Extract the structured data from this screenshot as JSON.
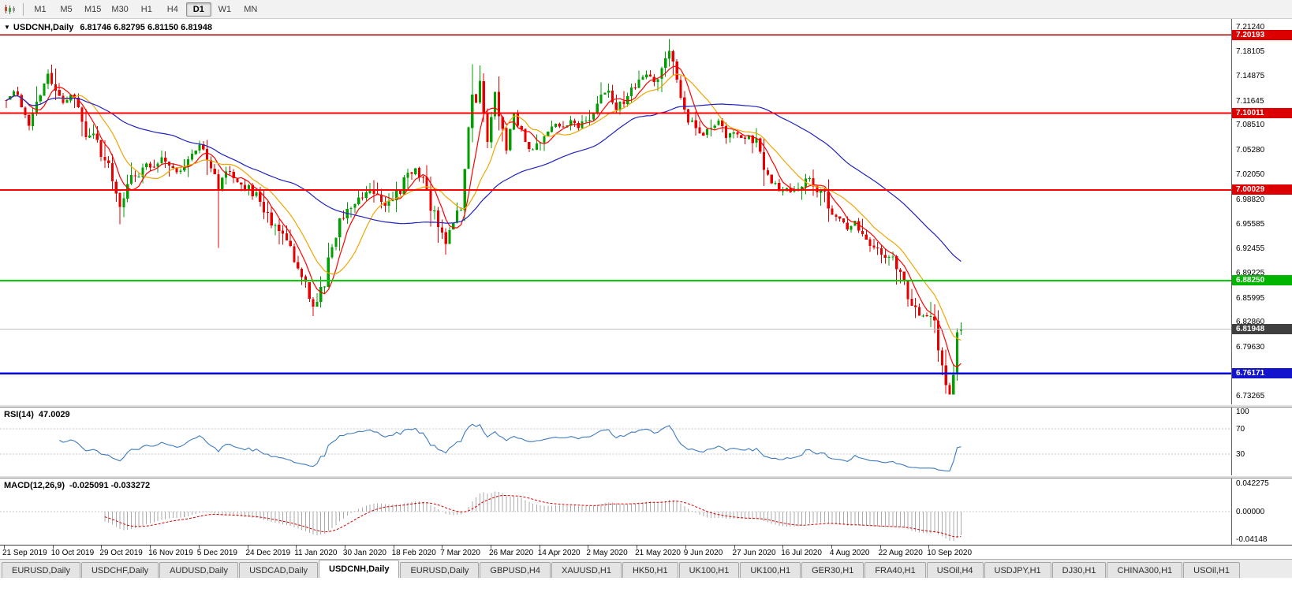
{
  "toolbar": {
    "timeframes": [
      "M1",
      "M5",
      "M15",
      "M30",
      "H1",
      "H4",
      "D1",
      "W1",
      "MN"
    ],
    "active_timeframe": "D1"
  },
  "chart": {
    "collapse_icon": "▼",
    "symbol_label": "USDCNH,Daily",
    "ohlc_text": "6.81746 6.82795 6.81150 6.81948"
  },
  "price_axis": {
    "labels": [
      "7.21240",
      "7.18105",
      "7.14875",
      "7.11645",
      "7.08510",
      "7.05280",
      "7.02050",
      "6.98820",
      "6.95585",
      "6.92455",
      "6.89225",
      "6.85995",
      "6.82860",
      "6.79630",
      "6.76400",
      "6.73265"
    ]
  },
  "levels": [
    {
      "label": "7.20193",
      "price": 7.20193,
      "line_color": "#b20000",
      "badge_color": "#dd0000",
      "width": 1.4,
      "current": false
    },
    {
      "label": "7.10011",
      "price": 7.10011,
      "line_color": "#ff0000",
      "badge_color": "#dd0000",
      "width": 2,
      "current": false
    },
    {
      "label": "7.00029",
      "price": 7.00029,
      "line_color": "#ff0000",
      "badge_color": "#dd0000",
      "width": 2,
      "current": false
    },
    {
      "label": "6.88250",
      "price": 6.8825,
      "line_color": "#00cf00",
      "badge_color": "#00b400",
      "width": 2,
      "current": false
    },
    {
      "label": "6.81948",
      "price": 6.81948,
      "line_color": "#bdbdbd",
      "badge_color": "#3f3f3f",
      "width": 1,
      "current": true
    },
    {
      "label": "6.76171",
      "price": 6.76171,
      "line_color": "#0000e6",
      "badge_color": "#1414cd",
      "width": 2.4,
      "current": false
    }
  ],
  "indicators": {
    "rsi": {
      "name": "RSI(14)",
      "value": "47.0029",
      "axis_labels": [
        "100",
        "70",
        "30"
      ],
      "axis_values": [
        100,
        70,
        30
      ],
      "levels": [
        70,
        30
      ],
      "line_color": "#3e7bbf"
    },
    "macd": {
      "name": "MACD(12,26,9)",
      "value_text": "-0.025091 -0.033272",
      "axis_labels": [
        "0.042275",
        "0.00000",
        "-0.04148"
      ],
      "hist_color": "#ababab",
      "signal_color": "#d40000"
    }
  },
  "date_axis": {
    "labels": [
      "21 Sep 2019",
      "10 Oct 2019",
      "29 Oct 2019",
      "16 Nov 2019",
      "5 Dec 2019",
      "24 Dec 2019",
      "11 Jan 2020",
      "30 Jan 2020",
      "18 Feb 2020",
      "7 Mar 2020",
      "26 Mar 2020",
      "14 Apr 2020",
      "2 May 2020",
      "21 May 2020",
      "9 Jun 2020",
      "27 Jun 2020",
      "16 Jul 2020",
      "4 Aug 2020",
      "22 Aug 2020",
      "10 Sep 2020"
    ]
  },
  "tabs": {
    "active_index": 4,
    "items": [
      "EURUSD,Daily",
      "USDCHF,Daily",
      "AUDUSD,Daily",
      "USDCAD,Daily",
      "USDCNH,Daily",
      "EURUSD,Daily",
      "GBPUSD,H4",
      "XAUUSD,H1",
      "HK50,H1",
      "UK100,H1",
      "UK100,H1",
      "GER30,H1",
      "FRA40,H1",
      "USOil,H4",
      "USDJPY,H1",
      "DJ30,H1",
      "CHINA300,H1",
      "USOil,H1"
    ]
  },
  "chart_data": {
    "type": "candlestick",
    "symbol": "USDCNH",
    "timeframe": "Daily",
    "y_range": [
      6.73265,
      7.2124
    ],
    "x_range": [
      "21 Sep 2019",
      "22 Sep 2020"
    ],
    "last_candle": {
      "open": 6.81746,
      "high": 6.82795,
      "low": 6.8115,
      "close": 6.81948
    },
    "second_last_candle": {
      "open": 6.7605,
      "high": 6.8205,
      "low": 6.752,
      "close": 6.815
    },
    "horizontal_levels": [
      7.20193,
      7.10011,
      7.00029,
      6.8825,
      6.76171
    ],
    "moving_averages": [
      {
        "name": "fast-ma",
        "period": 6,
        "color": "#ff0000"
      },
      {
        "name": "mid-ma",
        "period": 13,
        "color": "#efa600"
      },
      {
        "name": "slow-ma",
        "period": 45,
        "color": "#2020c0"
      }
    ],
    "candle_count": 253,
    "up_color": "#00a000",
    "down_color": "#e60000",
    "price_path": [
      [
        0,
        7.118
      ],
      [
        2,
        7.128
      ],
      [
        4,
        7.112
      ],
      [
        6,
        7.086
      ],
      [
        8,
        7.116
      ],
      [
        10,
        7.142
      ],
      [
        11,
        7.15
      ],
      [
        13,
        7.127
      ],
      [
        15,
        7.112
      ],
      [
        17,
        7.127
      ],
      [
        19,
        7.1
      ],
      [
        21,
        7.068
      ],
      [
        23,
        7.073
      ],
      [
        25,
        7.052
      ],
      [
        27,
        7.032
      ],
      [
        29,
        6.997
      ],
      [
        30,
        6.979
      ],
      [
        31,
        6.993
      ],
      [
        33,
        7.017
      ],
      [
        35,
        7.022
      ],
      [
        37,
        7.036
      ],
      [
        39,
        7.028
      ],
      [
        41,
        7.043
      ],
      [
        43,
        7.03
      ],
      [
        45,
        7.022
      ],
      [
        47,
        7.033
      ],
      [
        49,
        7.046
      ],
      [
        51,
        7.057
      ],
      [
        53,
        7.04
      ],
      [
        55,
        7.022
      ],
      [
        56,
        7.003
      ],
      [
        58,
        7.028
      ],
      [
        60,
        7.018
      ],
      [
        62,
        7.008
      ],
      [
        64,
        7.002
      ],
      [
        66,
        6.991
      ],
      [
        68,
        6.972
      ],
      [
        70,
        6.961
      ],
      [
        72,
        6.942
      ],
      [
        74,
        6.93
      ],
      [
        76,
        6.911
      ],
      [
        78,
        6.886
      ],
      [
        80,
        6.859
      ],
      [
        81,
        6.846
      ],
      [
        82,
        6.853
      ],
      [
        84,
        6.883
      ],
      [
        86,
        6.932
      ],
      [
        88,
        6.961
      ],
      [
        90,
        6.971
      ],
      [
        92,
        6.982
      ],
      [
        94,
        6.992
      ],
      [
        96,
        7.001
      ],
      [
        98,
        6.988
      ],
      [
        100,
        6.978
      ],
      [
        102,
        6.992
      ],
      [
        104,
        6.999
      ],
      [
        106,
        7.021
      ],
      [
        108,
        7.027
      ],
      [
        110,
        7.011
      ],
      [
        112,
        6.981
      ],
      [
        114,
        6.952
      ],
      [
        116,
        6.931
      ],
      [
        118,
        6.953
      ],
      [
        120,
        6.983
      ],
      [
        121,
        7.021
      ],
      [
        122,
        7.081
      ],
      [
        123,
        7.131
      ],
      [
        124,
        7.111
      ],
      [
        125,
        7.147
      ],
      [
        126,
        7.097
      ],
      [
        127,
        7.062
      ],
      [
        128,
        7.094
      ],
      [
        129,
        7.127
      ],
      [
        130,
        7.097
      ],
      [
        131,
        7.071
      ],
      [
        132,
        7.052
      ],
      [
        133,
        7.081
      ],
      [
        134,
        7.101
      ],
      [
        135,
        7.081
      ],
      [
        137,
        7.061
      ],
      [
        139,
        7.051
      ],
      [
        141,
        7.067
      ],
      [
        143,
        7.077
      ],
      [
        145,
        7.087
      ],
      [
        147,
        7.081
      ],
      [
        149,
        7.091
      ],
      [
        151,
        7.081
      ],
      [
        153,
        7.091
      ],
      [
        155,
        7.101
      ],
      [
        157,
        7.121
      ],
      [
        159,
        7.127
      ],
      [
        161,
        7.107
      ],
      [
        163,
        7.117
      ],
      [
        165,
        7.131
      ],
      [
        167,
        7.141
      ],
      [
        169,
        7.151
      ],
      [
        171,
        7.141
      ],
      [
        173,
        7.157
      ],
      [
        175,
        7.177
      ],
      [
        176,
        7.167
      ],
      [
        178,
        7.121
      ],
      [
        180,
        7.091
      ],
      [
        182,
        7.081
      ],
      [
        184,
        7.071
      ],
      [
        186,
        7.081
      ],
      [
        188,
        7.091
      ],
      [
        190,
        7.071
      ],
      [
        192,
        7.077
      ],
      [
        194,
        7.067
      ],
      [
        196,
        7.071
      ],
      [
        198,
        7.061
      ],
      [
        200,
        7.031
      ],
      [
        202,
        7.011
      ],
      [
        204,
        6.997
      ],
      [
        206,
        7.001
      ],
      [
        208,
        6.997
      ],
      [
        210,
        7.007
      ],
      [
        212,
        7.017
      ],
      [
        214,
        7.001
      ],
      [
        216,
        6.991
      ],
      [
        218,
        6.971
      ],
      [
        220,
        6.961
      ],
      [
        222,
        6.951
      ],
      [
        224,
        6.957
      ],
      [
        226,
        6.941
      ],
      [
        228,
        6.931
      ],
      [
        230,
        6.921
      ],
      [
        232,
        6.911
      ],
      [
        234,
        6.917
      ],
      [
        236,
        6.891
      ],
      [
        238,
        6.861
      ],
      [
        240,
        6.845
      ],
      [
        242,
        6.837
      ],
      [
        244,
        6.841
      ],
      [
        245,
        6.831
      ],
      [
        246,
        6.801
      ],
      [
        247,
        6.771
      ],
      [
        248,
        6.747
      ],
      [
        249,
        6.741
      ],
      [
        250,
        6.761
      ],
      [
        251,
        6.8145
      ],
      [
        252,
        6.81948
      ]
    ],
    "wick_features": [
      [
        30,
        "l",
        6.9558
      ],
      [
        56,
        "l",
        6.925
      ],
      [
        81,
        "l",
        6.836
      ],
      [
        116,
        "l",
        6.916
      ],
      [
        123,
        "h",
        7.1635
      ],
      [
        175,
        "h",
        7.1965
      ],
      [
        248,
        "l",
        6.7352
      ]
    ]
  }
}
